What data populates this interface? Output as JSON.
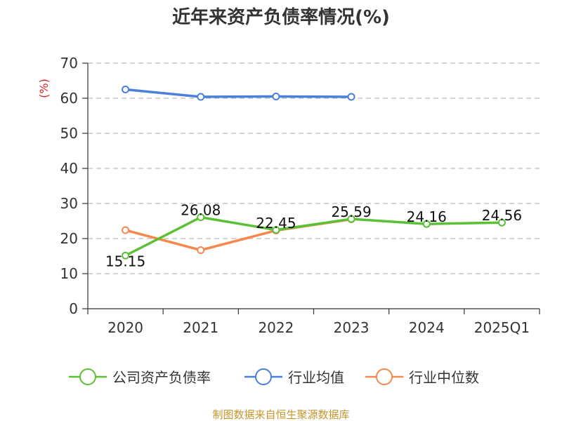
{
  "chart_data": {
    "type": "line",
    "title": "近年来资产负债率情况(%)",
    "ylabel": "(%)",
    "xlabel": "",
    "categories": [
      "2020",
      "2021",
      "2022",
      "2023",
      "2024",
      "2025Q1"
    ],
    "ylim": [
      0,
      70
    ],
    "yticks": [
      "0",
      "10",
      "20",
      "30",
      "40",
      "50",
      "60",
      "70"
    ],
    "grid": true,
    "legend_position": "bottom",
    "series": [
      {
        "name": "公司资产负债率",
        "color": "#5ac134",
        "values": [
          15.15,
          26.08,
          22.45,
          25.59,
          24.16,
          24.56
        ],
        "labels": [
          "15.15",
          "26.08",
          "22.45",
          "25.59",
          "24.16",
          "24.56"
        ]
      },
      {
        "name": "行业均值",
        "color": "#4a7fdc",
        "values": [
          62.5,
          60.4,
          60.5,
          60.4,
          null,
          null
        ]
      },
      {
        "name": "行业中位数",
        "color": "#f5884e",
        "values": [
          22.4,
          16.7,
          22.3,
          25.5,
          null,
          null
        ]
      }
    ]
  },
  "source": {
    "text": "制图数据来自恒生聚源数据库",
    "color": "#c8952c"
  },
  "unit_color": "#e02020"
}
